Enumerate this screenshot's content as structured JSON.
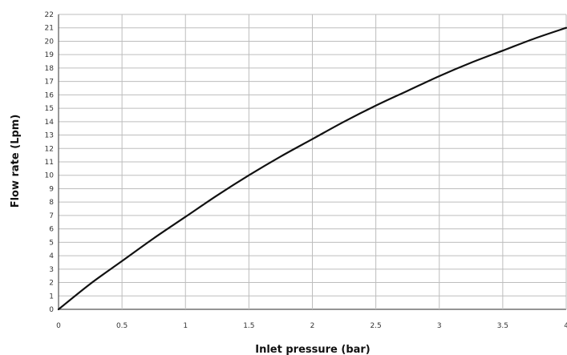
{
  "chart_data": {
    "type": "line",
    "xlabel": "Inlet pressure (bar)",
    "ylabel": "Flow rate (Lpm)",
    "xlim": [
      0,
      4
    ],
    "ylim": [
      0,
      22
    ],
    "grid": true,
    "x_ticks": [
      "0",
      "0.5",
      "1",
      "1.5",
      "2",
      "2.5",
      "3",
      "3.5",
      "4"
    ],
    "y_ticks": [
      "0",
      "1",
      "2",
      "3",
      "4",
      "5",
      "6",
      "7",
      "8",
      "9",
      "10",
      "11",
      "12",
      "13",
      "14",
      "15",
      "16",
      "17",
      "18",
      "19",
      "20",
      "21",
      "22"
    ],
    "series": [
      {
        "color": "#111111",
        "x": [
          0,
          0.25,
          0.5,
          0.75,
          1,
          1.25,
          1.5,
          1.75,
          2,
          2.25,
          2.5,
          2.75,
          3,
          3.25,
          3.5,
          3.75,
          4
        ],
        "y": [
          0,
          1.9,
          3.6,
          5.3,
          6.9,
          8.5,
          10.0,
          11.4,
          12.7,
          14.0,
          15.2,
          16.3,
          17.4,
          18.4,
          19.3,
          20.2,
          21.0
        ]
      }
    ]
  }
}
